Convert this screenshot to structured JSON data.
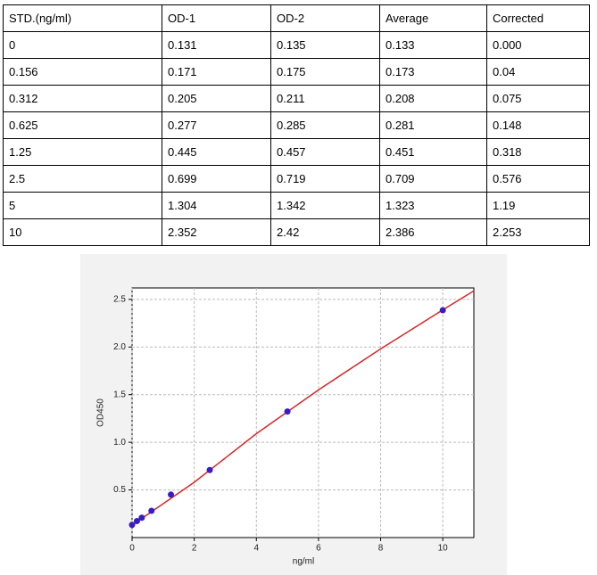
{
  "table": {
    "header": [
      "STD.(ng/ml)",
      "OD-1",
      "OD-2",
      "Average",
      "Corrected"
    ],
    "rows": [
      [
        "0",
        "0.131",
        "0.135",
        "0.133",
        "0.000"
      ],
      [
        "0.156",
        "0.171",
        "0.175",
        "0.173",
        "0.04"
      ],
      [
        "0.312",
        "0.205",
        "0.211",
        "0.208",
        "0.075"
      ],
      [
        "0.625",
        "0.277",
        "0.285",
        "0.281",
        "0.148"
      ],
      [
        "1.25",
        "0.445",
        "0.457",
        "0.451",
        "0.318"
      ],
      [
        "2.5",
        "0.699",
        "0.719",
        "0.709",
        "0.576"
      ],
      [
        "5",
        "1.304",
        "1.342",
        "1.323",
        "1.19"
      ],
      [
        "10",
        "2.352",
        "2.42",
        "2.386",
        "2.253"
      ]
    ]
  },
  "chart_data": {
    "type": "scatter",
    "xlabel": "ng/ml",
    "ylabel": "OD450",
    "xlim": [
      0,
      11
    ],
    "xticks": [
      0,
      2,
      4,
      6,
      8,
      10
    ],
    "ylim": [
      0,
      2.62
    ],
    "yticks": [
      0.5,
      {
        "value": 1,
        "label": "1.0"
      },
      1.5,
      {
        "value": 2,
        "label": "2.0"
      },
      2.5
    ],
    "grid": true,
    "points": {
      "color": "#3a1cc4",
      "x": [
        0,
        0.156,
        0.312,
        0.625,
        1.25,
        2.5,
        5,
        10
      ],
      "values": [
        0.133,
        0.173,
        0.208,
        0.281,
        0.451,
        0.709,
        1.323,
        2.386
      ]
    },
    "fit": {
      "color": "#d62728",
      "x": [
        0,
        2,
        4,
        6,
        8,
        10,
        11
      ],
      "values": [
        0.13,
        0.58,
        1.09,
        1.55,
        1.98,
        2.39,
        2.59
      ]
    }
  }
}
